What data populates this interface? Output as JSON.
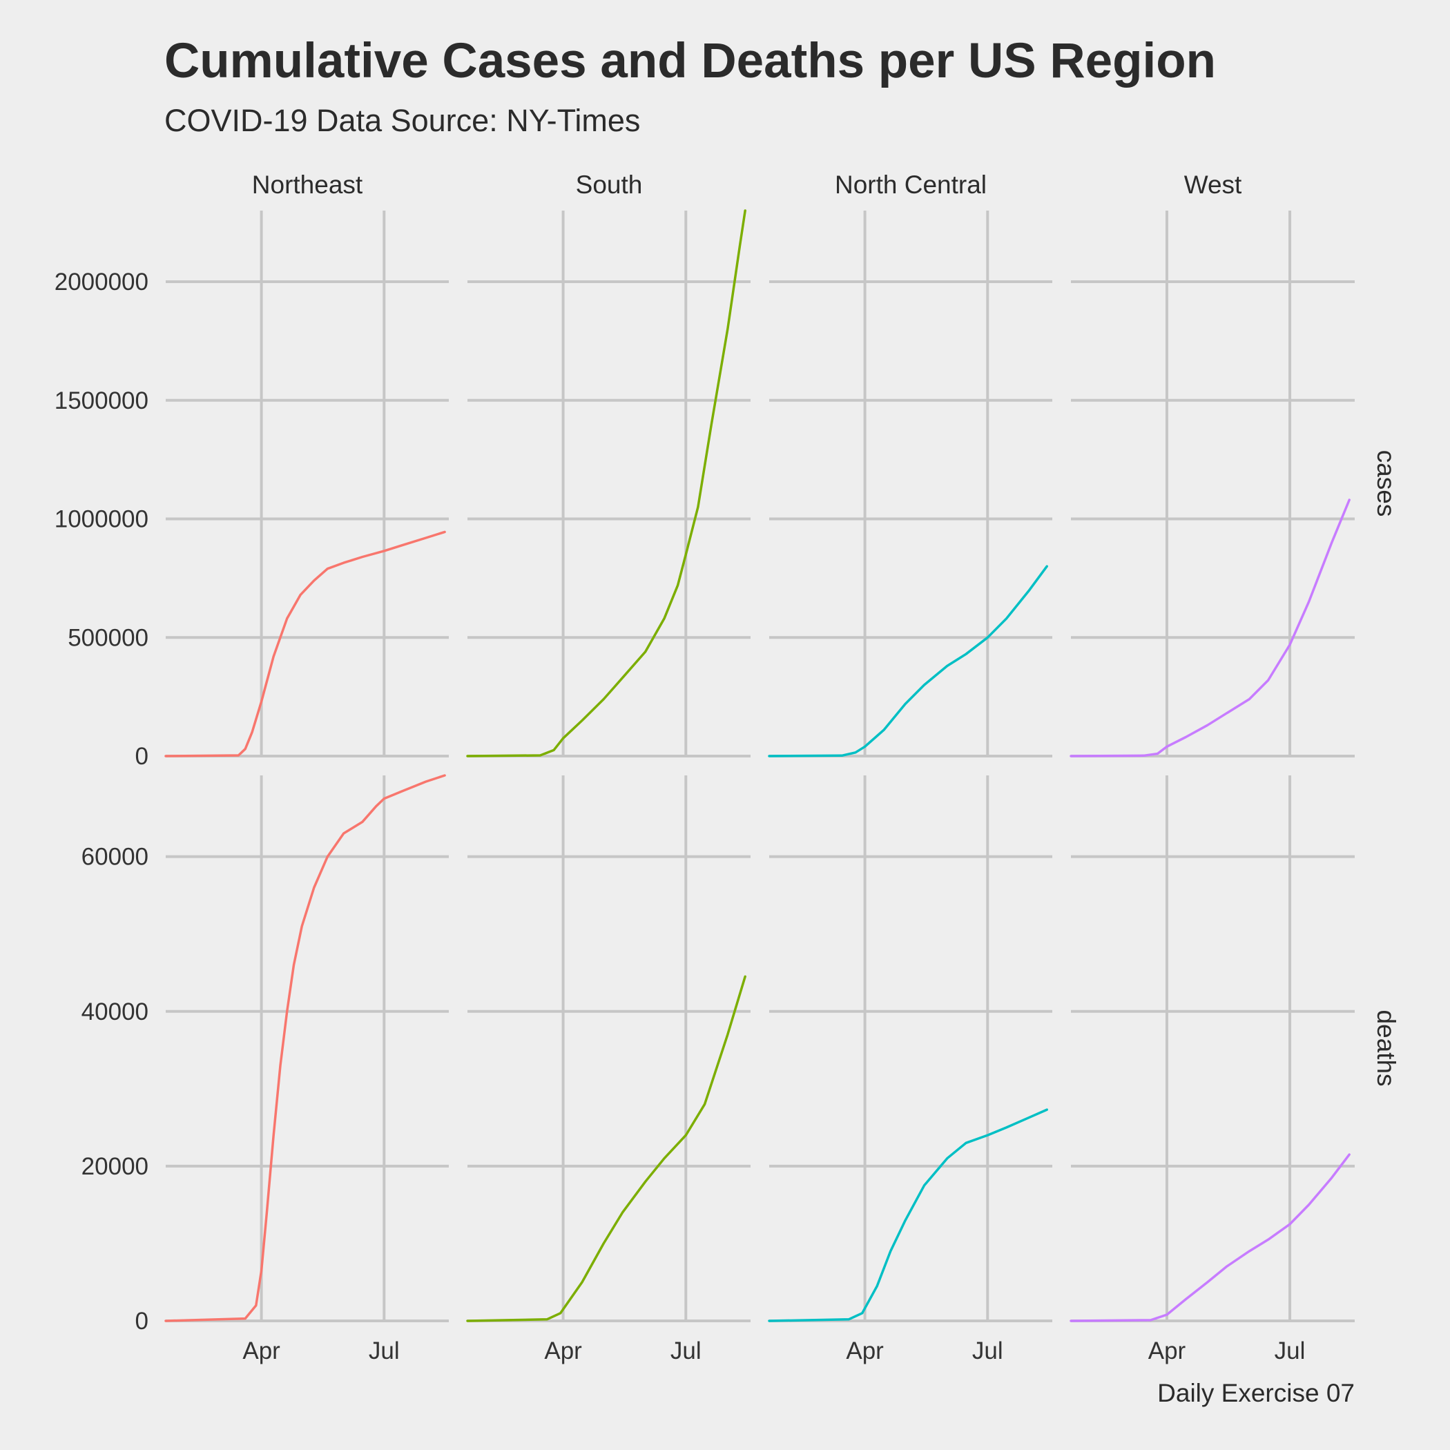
{
  "chart_data": {
    "type": "line",
    "title": "Cumulative Cases and Deaths per US Region",
    "subtitle": "COVID-19 Data Source: NY-Times",
    "caption": "Daily Exercise 07",
    "layout": "facet_grid rows=metric cols=region",
    "columns": [
      "Northeast",
      "South",
      "North Central",
      "West"
    ],
    "rows": [
      "cases",
      "deaths"
    ],
    "colors": {
      "Northeast": "#F8766D",
      "South": "#7CAE00",
      "North Central": "#00BFC4",
      "West": "#C77CFF"
    },
    "x_range": [
      "2020-01-21",
      "2020-08-18"
    ],
    "x_ticks": [
      {
        "date": "2020-04-01",
        "label": "Apr"
      },
      {
        "date": "2020-07-01",
        "label": "Jul"
      }
    ],
    "y_scales": {
      "cases": {
        "ylim": [
          0,
          2300000
        ],
        "ticks": [
          0,
          500000,
          1000000,
          1500000,
          2000000
        ]
      },
      "deaths": {
        "ylim": [
          0,
          70500
        ],
        "ticks": [
          0,
          20000,
          40000,
          60000
        ]
      }
    },
    "grid": true,
    "legend": "none",
    "panels": [
      {
        "row": "cases",
        "col": "Northeast",
        "x": [
          "2020-01-21",
          "2020-03-15",
          "2020-03-20",
          "2020-03-25",
          "2020-04-01",
          "2020-04-10",
          "2020-04-20",
          "2020-04-30",
          "2020-05-10",
          "2020-05-20",
          "2020-06-01",
          "2020-06-15",
          "2020-07-01",
          "2020-07-15",
          "2020-08-01",
          "2020-08-15"
        ],
        "y": [
          0,
          3000,
          30000,
          100000,
          230000,
          420000,
          580000,
          680000,
          740000,
          790000,
          815000,
          840000,
          865000,
          890000,
          920000,
          945000
        ]
      },
      {
        "row": "cases",
        "col": "South",
        "x": [
          "2020-01-21",
          "2020-03-15",
          "2020-03-25",
          "2020-04-01",
          "2020-04-15",
          "2020-05-01",
          "2020-05-15",
          "2020-06-01",
          "2020-06-15",
          "2020-06-25",
          "2020-07-01",
          "2020-07-10",
          "2020-07-20",
          "2020-08-01",
          "2020-08-10",
          "2020-08-14"
        ],
        "y": [
          0,
          3000,
          25000,
          75000,
          150000,
          240000,
          330000,
          440000,
          580000,
          720000,
          850000,
          1050000,
          1400000,
          1800000,
          2150000,
          2300000
        ]
      },
      {
        "row": "cases",
        "col": "North Central",
        "x": [
          "2020-01-21",
          "2020-03-15",
          "2020-03-25",
          "2020-04-01",
          "2020-04-15",
          "2020-05-01",
          "2020-05-15",
          "2020-06-01",
          "2020-06-15",
          "2020-07-01",
          "2020-07-15",
          "2020-08-01",
          "2020-08-14"
        ],
        "y": [
          0,
          2000,
          15000,
          40000,
          110000,
          220000,
          300000,
          380000,
          430000,
          500000,
          580000,
          700000,
          800000
        ]
      },
      {
        "row": "cases",
        "col": "West",
        "x": [
          "2020-01-21",
          "2020-03-15",
          "2020-03-25",
          "2020-04-01",
          "2020-04-15",
          "2020-05-01",
          "2020-05-15",
          "2020-06-01",
          "2020-06-15",
          "2020-07-01",
          "2020-07-15",
          "2020-08-01",
          "2020-08-14"
        ],
        "y": [
          0,
          2000,
          10000,
          40000,
          80000,
          130000,
          180000,
          240000,
          320000,
          470000,
          650000,
          900000,
          1080000
        ]
      },
      {
        "row": "deaths",
        "col": "Northeast",
        "x": [
          "2020-01-21",
          "2020-03-20",
          "2020-03-28",
          "2020-04-01",
          "2020-04-05",
          "2020-04-10",
          "2020-04-15",
          "2020-04-20",
          "2020-04-25",
          "2020-05-01",
          "2020-05-10",
          "2020-05-20",
          "2020-06-01",
          "2020-06-15",
          "2020-06-25",
          "2020-07-01",
          "2020-07-15",
          "2020-08-01",
          "2020-08-15"
        ],
        "y": [
          0,
          300,
          2000,
          6500,
          14000,
          24000,
          33000,
          40000,
          46000,
          51000,
          56000,
          60000,
          63000,
          64500,
          66500,
          67500,
          68500,
          69700,
          70500
        ]
      },
      {
        "row": "deaths",
        "col": "South",
        "x": [
          "2020-01-21",
          "2020-03-20",
          "2020-03-30",
          "2020-04-15",
          "2020-05-01",
          "2020-05-15",
          "2020-06-01",
          "2020-06-15",
          "2020-07-01",
          "2020-07-15",
          "2020-08-01",
          "2020-08-14"
        ],
        "y": [
          0,
          200,
          1000,
          5000,
          10000,
          14000,
          18000,
          21000,
          24000,
          28000,
          37000,
          44500
        ]
      },
      {
        "row": "deaths",
        "col": "North Central",
        "x": [
          "2020-01-21",
          "2020-03-20",
          "2020-03-30",
          "2020-04-10",
          "2020-04-20",
          "2020-05-01",
          "2020-05-15",
          "2020-06-01",
          "2020-06-15",
          "2020-07-01",
          "2020-07-15",
          "2020-08-01",
          "2020-08-14"
        ],
        "y": [
          0,
          200,
          1000,
          4500,
          9000,
          13000,
          17500,
          21000,
          23000,
          24000,
          25000,
          26300,
          27300
        ]
      },
      {
        "row": "deaths",
        "col": "West",
        "x": [
          "2020-01-21",
          "2020-03-20",
          "2020-04-01",
          "2020-04-15",
          "2020-05-01",
          "2020-05-15",
          "2020-06-01",
          "2020-06-15",
          "2020-07-01",
          "2020-07-15",
          "2020-08-01",
          "2020-08-14"
        ],
        "y": [
          0,
          100,
          800,
          2800,
          5000,
          7000,
          9000,
          10500,
          12500,
          15000,
          18500,
          21500
        ]
      }
    ]
  }
}
